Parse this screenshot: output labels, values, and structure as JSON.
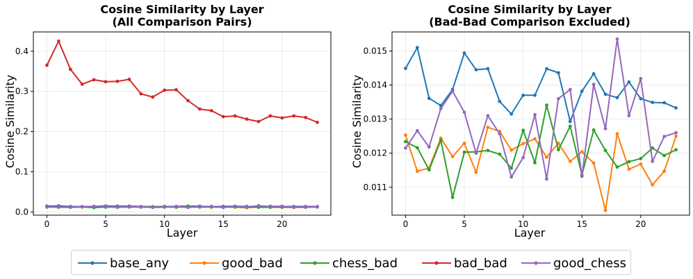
{
  "chart_data": [
    {
      "type": "line",
      "title": "Cosine Similarity by Layer",
      "subtitle": "(All Comparison Pairs)",
      "xlabel": "Layer",
      "ylabel": "Cosine Similarity",
      "xlim": [
        -1.15,
        24.15
      ],
      "ylim": [
        -0.008,
        0.448
      ],
      "xticks": [
        0,
        5,
        10,
        15,
        20
      ],
      "yticks": [
        0.0,
        0.1,
        0.2,
        0.3,
        0.4
      ],
      "ytick_labels": [
        "0.0",
        "0.1",
        "0.2",
        "0.3",
        "0.4"
      ],
      "grid": true,
      "x": [
        0,
        1,
        2,
        3,
        4,
        5,
        6,
        7,
        8,
        9,
        10,
        11,
        12,
        13,
        14,
        15,
        16,
        17,
        18,
        19,
        20,
        21,
        22,
        23
      ],
      "series": [
        {
          "name": "base_any",
          "color": "#1f77b4",
          "values": [
            0.0145,
            0.0151,
            0.0136,
            0.0134,
            0.0139,
            0.0149,
            0.0144,
            0.0145,
            0.0135,
            0.0131,
            0.0137,
            0.0137,
            0.0145,
            0.0143,
            0.0129,
            0.0138,
            0.0143,
            0.0137,
            0.0136,
            0.0141,
            0.0136,
            0.0135,
            0.0135,
            0.0133
          ]
        },
        {
          "name": "good_bad",
          "color": "#ff7f0e",
          "values": [
            0.0125,
            0.0115,
            0.0116,
            0.0124,
            0.0119,
            0.0123,
            0.0114,
            0.0128,
            0.0126,
            0.0121,
            0.0123,
            0.0124,
            0.0119,
            0.0123,
            0.0118,
            0.012,
            0.0117,
            0.0103,
            0.0126,
            0.0115,
            0.0117,
            0.0111,
            0.0115,
            0.0125
          ]
        },
        {
          "name": "chess_bad",
          "color": "#2ca02c",
          "values": [
            0.0123,
            0.0122,
            0.0115,
            0.0124,
            0.0107,
            0.012,
            0.012,
            0.0121,
            0.012,
            0.0116,
            0.0127,
            0.0117,
            0.0134,
            0.0121,
            0.0128,
            0.0114,
            0.0127,
            0.0121,
            0.0116,
            0.0118,
            0.0118,
            0.0122,
            0.0119,
            0.0121
          ]
        },
        {
          "name": "bad_bad",
          "color": "#d62728",
          "values": [
            0.365,
            0.425,
            0.355,
            0.318,
            0.329,
            0.324,
            0.325,
            0.33,
            0.294,
            0.286,
            0.303,
            0.304,
            0.277,
            0.256,
            0.252,
            0.237,
            0.239,
            0.231,
            0.225,
            0.239,
            0.234,
            0.239,
            0.235,
            0.223
          ]
        },
        {
          "name": "good_chess",
          "color": "#9467bd",
          "values": [
            0.0122,
            0.0127,
            0.0122,
            0.0133,
            0.0138,
            0.0132,
            0.012,
            0.0131,
            0.0126,
            0.0113,
            0.0119,
            0.0131,
            0.0112,
            0.0136,
            0.0139,
            0.0113,
            0.014,
            0.0127,
            0.0154,
            0.0131,
            0.0142,
            0.0118,
            0.0125,
            0.0126
          ]
        }
      ]
    },
    {
      "type": "line",
      "title": "Cosine Similarity by Layer",
      "subtitle": "(Bad-Bad Comparison Excluded)",
      "xlabel": "Layer",
      "ylabel": "Cosine Similarity",
      "xlim": [
        -1.15,
        24.15
      ],
      "ylim": [
        0.01018,
        0.01556
      ],
      "xticks": [
        0,
        5,
        10,
        15,
        20
      ],
      "yticks": [
        0.011,
        0.012,
        0.013,
        0.014,
        0.015
      ],
      "ytick_labels": [
        "0.011",
        "0.012",
        "0.013",
        "0.014",
        "0.015"
      ],
      "grid": true,
      "x": [
        0,
        1,
        2,
        3,
        4,
        5,
        6,
        7,
        8,
        9,
        10,
        11,
        12,
        13,
        14,
        15,
        16,
        17,
        18,
        19,
        20,
        21,
        22,
        23
      ],
      "series": [
        {
          "name": "base_any",
          "color": "#1f77b4",
          "values": [
            0.01449,
            0.0151,
            0.01361,
            0.0134,
            0.01387,
            0.01494,
            0.01445,
            0.01448,
            0.01352,
            0.01315,
            0.0137,
            0.0137,
            0.01448,
            0.01436,
            0.01293,
            0.01382,
            0.01433,
            0.01373,
            0.01363,
            0.01409,
            0.0136,
            0.01349,
            0.01348,
            0.01333
          ]
        },
        {
          "name": "good_bad",
          "color": "#ff7f0e",
          "values": [
            0.01253,
            0.01147,
            0.01156,
            0.01244,
            0.0119,
            0.01229,
            0.01144,
            0.01276,
            0.01264,
            0.01209,
            0.01228,
            0.01242,
            0.01188,
            0.01229,
            0.01176,
            0.01204,
            0.01171,
            0.01032,
            0.01257,
            0.01153,
            0.01168,
            0.01107,
            0.01147,
            0.0125
          ]
        },
        {
          "name": "chess_bad",
          "color": "#2ca02c",
          "values": [
            0.01234,
            0.01216,
            0.01151,
            0.01238,
            0.0107,
            0.01203,
            0.01204,
            0.01208,
            0.01197,
            0.01156,
            0.01267,
            0.01172,
            0.01341,
            0.0121,
            0.01279,
            0.01136,
            0.01268,
            0.01208,
            0.01159,
            0.01175,
            0.01184,
            0.01215,
            0.01193,
            0.0121
          ]
        },
        {
          "name": "good_chess",
          "color": "#9467bd",
          "values": [
            0.01215,
            0.01266,
            0.01218,
            0.01331,
            0.01382,
            0.0132,
            0.012,
            0.0131,
            0.01257,
            0.0113,
            0.01187,
            0.01313,
            0.01124,
            0.0136,
            0.01387,
            0.01132,
            0.01402,
            0.01272,
            0.01535,
            0.0131,
            0.01419,
            0.01176,
            0.01249,
            0.0126
          ]
        }
      ]
    }
  ],
  "legend": {
    "placement": "bottom-center",
    "items": [
      {
        "name": "base_any",
        "color": "#1f77b4"
      },
      {
        "name": "good_bad",
        "color": "#ff7f0e"
      },
      {
        "name": "chess_bad",
        "color": "#2ca02c"
      },
      {
        "name": "bad_bad",
        "color": "#d62728"
      },
      {
        "name": "good_chess",
        "color": "#9467bd"
      }
    ]
  }
}
